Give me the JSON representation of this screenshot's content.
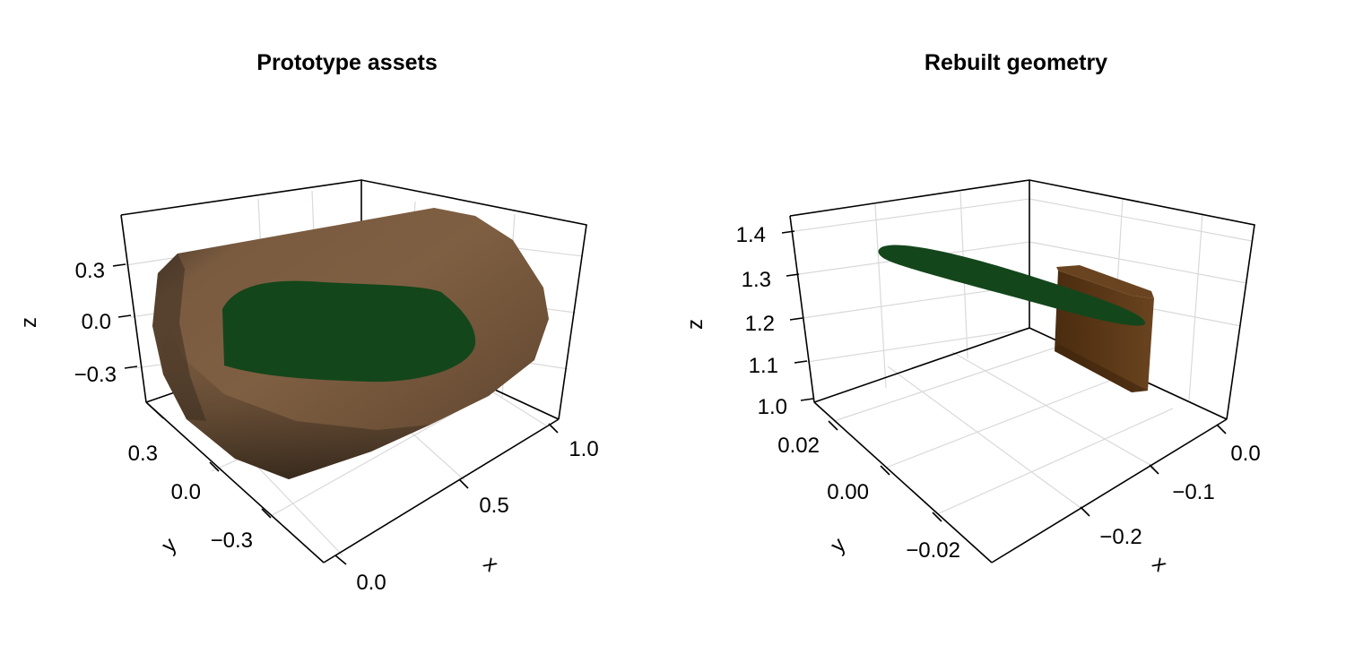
{
  "colors": {
    "bark_light": "#7f5f42",
    "bark_dark": "#3b2d20",
    "leaf": "#14461b",
    "box_brown": "#5a3716",
    "box_brown_dark": "#3d240d",
    "grid": "#d9d9d9"
  },
  "chart_data": [
    {
      "type": "surface3d",
      "title": "Prototype assets",
      "xlabel": "x",
      "ylabel": "y",
      "zlabel": "z",
      "xticks": [
        "0.0",
        "0.5",
        "1.0"
      ],
      "xtick_values": [
        0.0,
        0.5,
        1.0
      ],
      "yticks": [
        "−0.3",
        "0.0",
        "0.3"
      ],
      "ytick_values": [
        -0.3,
        0.0,
        0.3
      ],
      "zticks": [
        "−0.3",
        "0.0",
        "0.3"
      ],
      "ztick_values": [
        -0.3,
        0.0,
        0.3
      ],
      "xlim": [
        -0.05,
        1.15
      ],
      "ylim": [
        -0.55,
        0.55
      ],
      "zlim": [
        -0.5,
        0.55
      ],
      "grid": true,
      "series": [
        {
          "shape": "capped-cylinder",
          "color": "bark",
          "x_range": [
            0.0,
            1.1
          ],
          "radius": 0.45
        },
        {
          "shape": "ellipse-disk",
          "color": "leaf",
          "x_range": [
            0.05,
            0.95
          ],
          "width": 0.7
        }
      ]
    },
    {
      "type": "surface3d",
      "title": "Rebuilt geometry",
      "xlabel": "x",
      "ylabel": "y",
      "zlabel": "z",
      "xticks": [
        "−0.2",
        "−0.1",
        "0.0"
      ],
      "xtick_values": [
        -0.2,
        -0.1,
        0.0
      ],
      "yticks": [
        "−0.02",
        "0.00",
        "0.02"
      ],
      "ytick_values": [
        -0.02,
        0.0,
        0.02
      ],
      "zticks": [
        "1.0",
        "1.1",
        "1.2",
        "1.3",
        "1.4"
      ],
      "ztick_values": [
        1.0,
        1.1,
        1.2,
        1.3,
        1.4
      ],
      "xlim": [
        -0.28,
        0.04
      ],
      "ylim": [
        -0.035,
        0.035
      ],
      "zlim": [
        1.0,
        1.42
      ],
      "grid": true,
      "series": [
        {
          "shape": "elongated-ellipsoid",
          "color": "leaf",
          "z": 1.3
        },
        {
          "shape": "thin-box",
          "color": "box_brown",
          "z_range": [
            1.05,
            1.3
          ]
        }
      ]
    }
  ]
}
